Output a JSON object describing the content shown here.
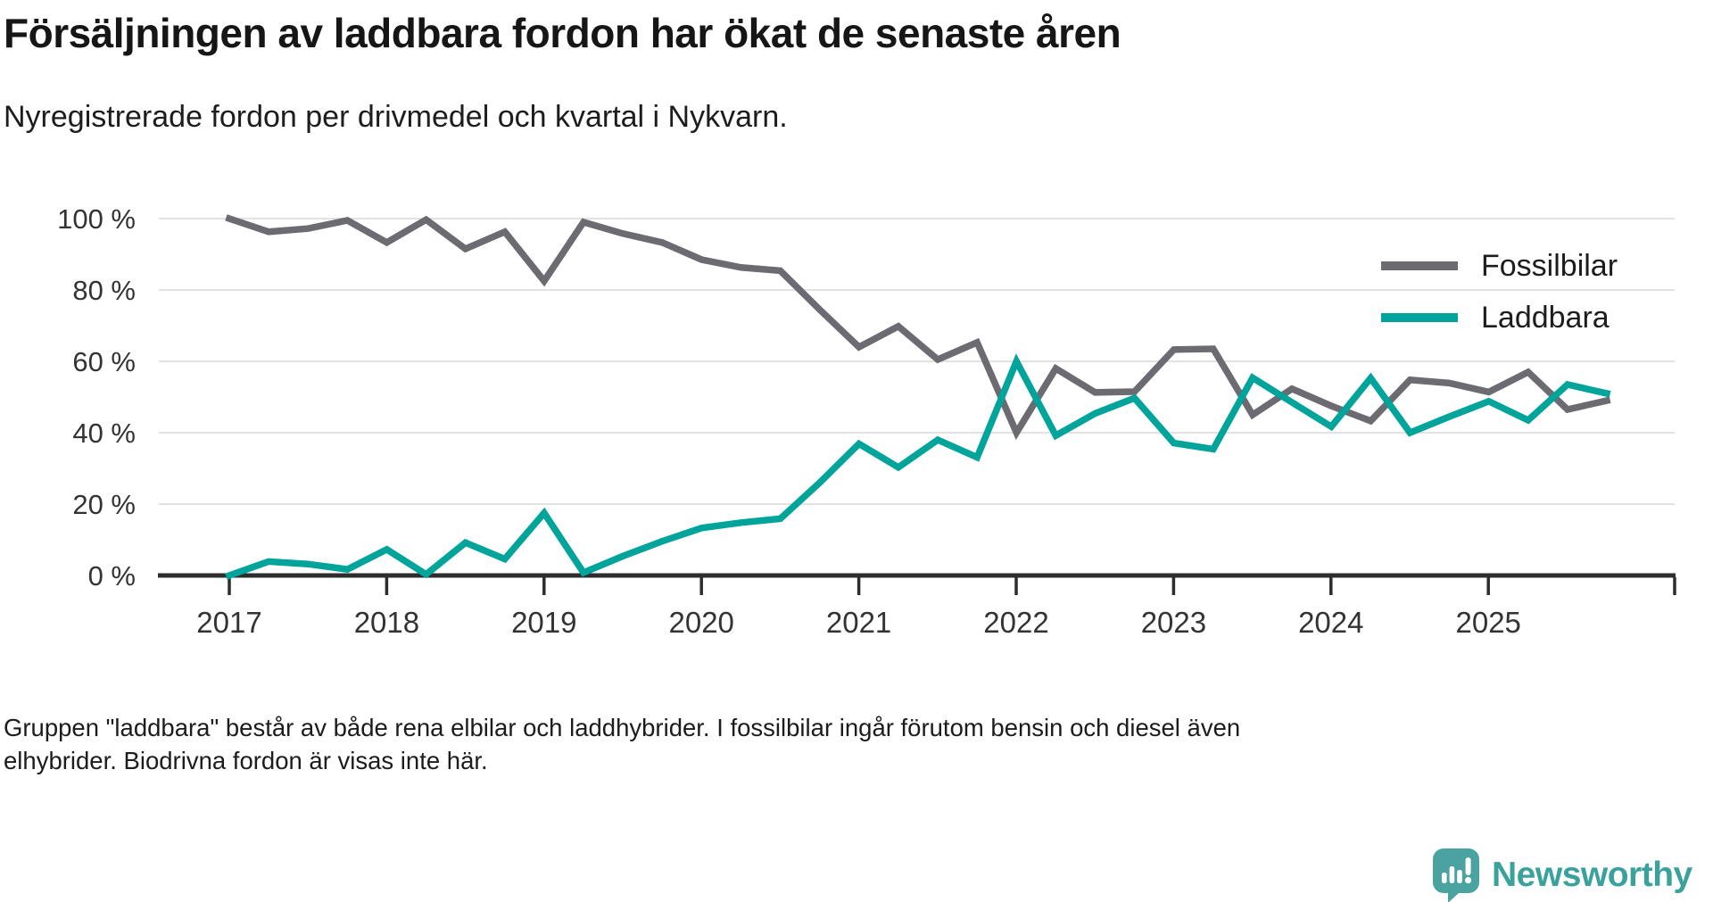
{
  "header": {
    "title": "Försäljningen av laddbara fordon har ökat de senaste åren",
    "subtitle": "Nyregistrerade fordon per drivmedel och kvartal i Nykvarn."
  },
  "legend": {
    "items": [
      {
        "label": "Fossilbilar"
      },
      {
        "label": "Laddbara"
      }
    ]
  },
  "footnote": {
    "line1": "Gruppen \"laddbara\" består av både rena elbilar och laddhybrider. I fossilbilar ingår förutom bensin och diesel även",
    "line2": "elhybrider. Biodrivna fordon är visas inte här."
  },
  "branding": {
    "name": "Newsworthy",
    "icon": "bar-chart-speech-bubble-icon",
    "text_color": "#3aa19c",
    "icon_color": "#4aa3a0"
  },
  "chart_data": {
    "type": "line",
    "x_unit": "quarter",
    "x_start": "2017-Q1",
    "x_end": "2025-Q4",
    "x_tick_labels": [
      "2017",
      "2018",
      "2019",
      "2020",
      "2021",
      "2022",
      "2023",
      "2024",
      "2025"
    ],
    "y_ticks": [
      0,
      20,
      40,
      60,
      80,
      100
    ],
    "y_tick_labels": [
      "0 %",
      "20 %",
      "40 %",
      "60 %",
      "80 %",
      "100 %"
    ],
    "ylim": [
      0,
      100
    ],
    "grid": "horizontal",
    "legend_position": "top-right",
    "axis_color": "#2d2d2d",
    "grid_color": "#e2e2e2",
    "series": [
      {
        "name": "Fossilbilar",
        "color": "#6b6b71",
        "values": [
          100,
          96.3,
          97.2,
          99.5,
          93.3,
          99.7,
          91.5,
          96.3,
          82.5,
          99,
          95.8,
          93.3,
          88.5,
          86.3,
          85.4,
          74.5,
          64,
          69.8,
          60.5,
          65.3,
          40,
          58,
          51.3,
          51.5,
          63.3,
          63.5,
          45,
          52.3,
          47.5,
          43.3,
          54.8,
          53.9,
          51.4,
          57,
          46.5,
          49
        ]
      },
      {
        "name": "Laddbara",
        "color": "#00a49a",
        "values": [
          0,
          3.9,
          3.2,
          1.7,
          7.3,
          0.3,
          9.2,
          4.6,
          17.5,
          0.8,
          5.4,
          9.6,
          13.3,
          14.8,
          15.9,
          26,
          36.9,
          30.3,
          38,
          33.1,
          60,
          39.2,
          45.4,
          49.7,
          37.1,
          35.4,
          55.4,
          48.5,
          41.7,
          55.3,
          40,
          44.5,
          48.8,
          43.5,
          53.5,
          51
        ]
      }
    ]
  }
}
